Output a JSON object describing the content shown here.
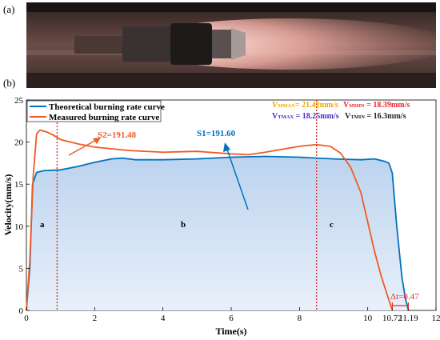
{
  "panel_a": {
    "label": "(a)"
  },
  "panel_b": {
    "label": "(b)"
  },
  "colors": {
    "theoretical": "#0072BD",
    "measured": "#F05A23",
    "fill": "#C5D9EF",
    "marker": "#E03030",
    "vmmax": "#F4A300",
    "vmmin": "#E8262E",
    "vtmax": "#4B2BC7",
    "vtmin": "#333333"
  },
  "chart_data": {
    "type": "line",
    "xlabel": "Time(s)",
    "ylabel": "Velocity(mm/s)",
    "xlim": [
      0,
      12
    ],
    "ylim": [
      0,
      25
    ],
    "xticks": [
      0,
      2,
      4,
      6,
      8,
      10,
      10.72,
      11.19,
      12
    ],
    "xtick_labels": [
      "0",
      "2",
      "4",
      "6",
      "8",
      "10",
      "10.72",
      "11.19",
      "12"
    ],
    "yticks": [
      0,
      5,
      10,
      15,
      20,
      25
    ],
    "grid": false,
    "legend_position": "top-left",
    "series": [
      {
        "name": "Theoretical burning rate curve",
        "color": "#0072BD",
        "x": [
          0,
          0.1,
          0.18,
          0.3,
          0.5,
          1.0,
          1.5,
          2.0,
          2.5,
          2.8,
          3.2,
          4.0,
          5.0,
          6.0,
          7.0,
          8.0,
          9.0,
          9.8,
          10.2,
          10.5,
          10.62,
          10.72,
          10.85,
          11.0,
          11.1,
          11.19
        ],
        "values": [
          0,
          5,
          15,
          16.4,
          16.6,
          16.7,
          17.1,
          17.6,
          18.0,
          18.1,
          17.9,
          17.9,
          18.0,
          18.2,
          18.3,
          18.2,
          18.0,
          17.9,
          18.0,
          17.7,
          17.5,
          16.3,
          10,
          4,
          1.5,
          0
        ]
      },
      {
        "name": "Measured burning rate curve",
        "color": "#F05A23",
        "x": [
          0,
          0.1,
          0.2,
          0.3,
          0.4,
          0.6,
          0.8,
          1.0,
          1.5,
          2.0,
          3.0,
          4.0,
          5.0,
          6.0,
          6.5,
          7.0,
          8.0,
          8.5,
          8.9,
          9.2,
          9.5,
          9.8,
          10.0,
          10.2,
          10.4,
          10.6,
          10.72
        ],
        "values": [
          0,
          6,
          16,
          21.0,
          21.42,
          21.2,
          20.8,
          20.3,
          19.8,
          19.4,
          19.0,
          18.8,
          18.9,
          18.6,
          18.5,
          18.8,
          19.5,
          19.7,
          19.5,
          18.7,
          17.0,
          14.0,
          10.5,
          7.0,
          4.0,
          1.5,
          0
        ]
      }
    ],
    "annotations": {
      "s2": "S2=191.48",
      "s1": "S1=191.60",
      "region_a": "a",
      "region_b": "b",
      "region_c": "c",
      "delta_t": "Δt=0.47",
      "vmmax": "V",
      "vmmax_sub": "MMAX",
      "vmmax_val": "= 21.42mm/s",
      "vmmin": "V",
      "vmmin_sub": "MMIN",
      "vmmin_val": " = 18.39mm/s",
      "vtmax": "V",
      "vtmax_sub": "TMAX",
      "vtmax_val": " = 18.25mm/s",
      "vtmin": "V",
      "vtmin_sub": "TMIN",
      "vtmin_val": " = 16.3mm/s"
    },
    "region_dividers_x": [
      0.9,
      8.5
    ],
    "delta_t_range": [
      10.72,
      11.19
    ]
  }
}
